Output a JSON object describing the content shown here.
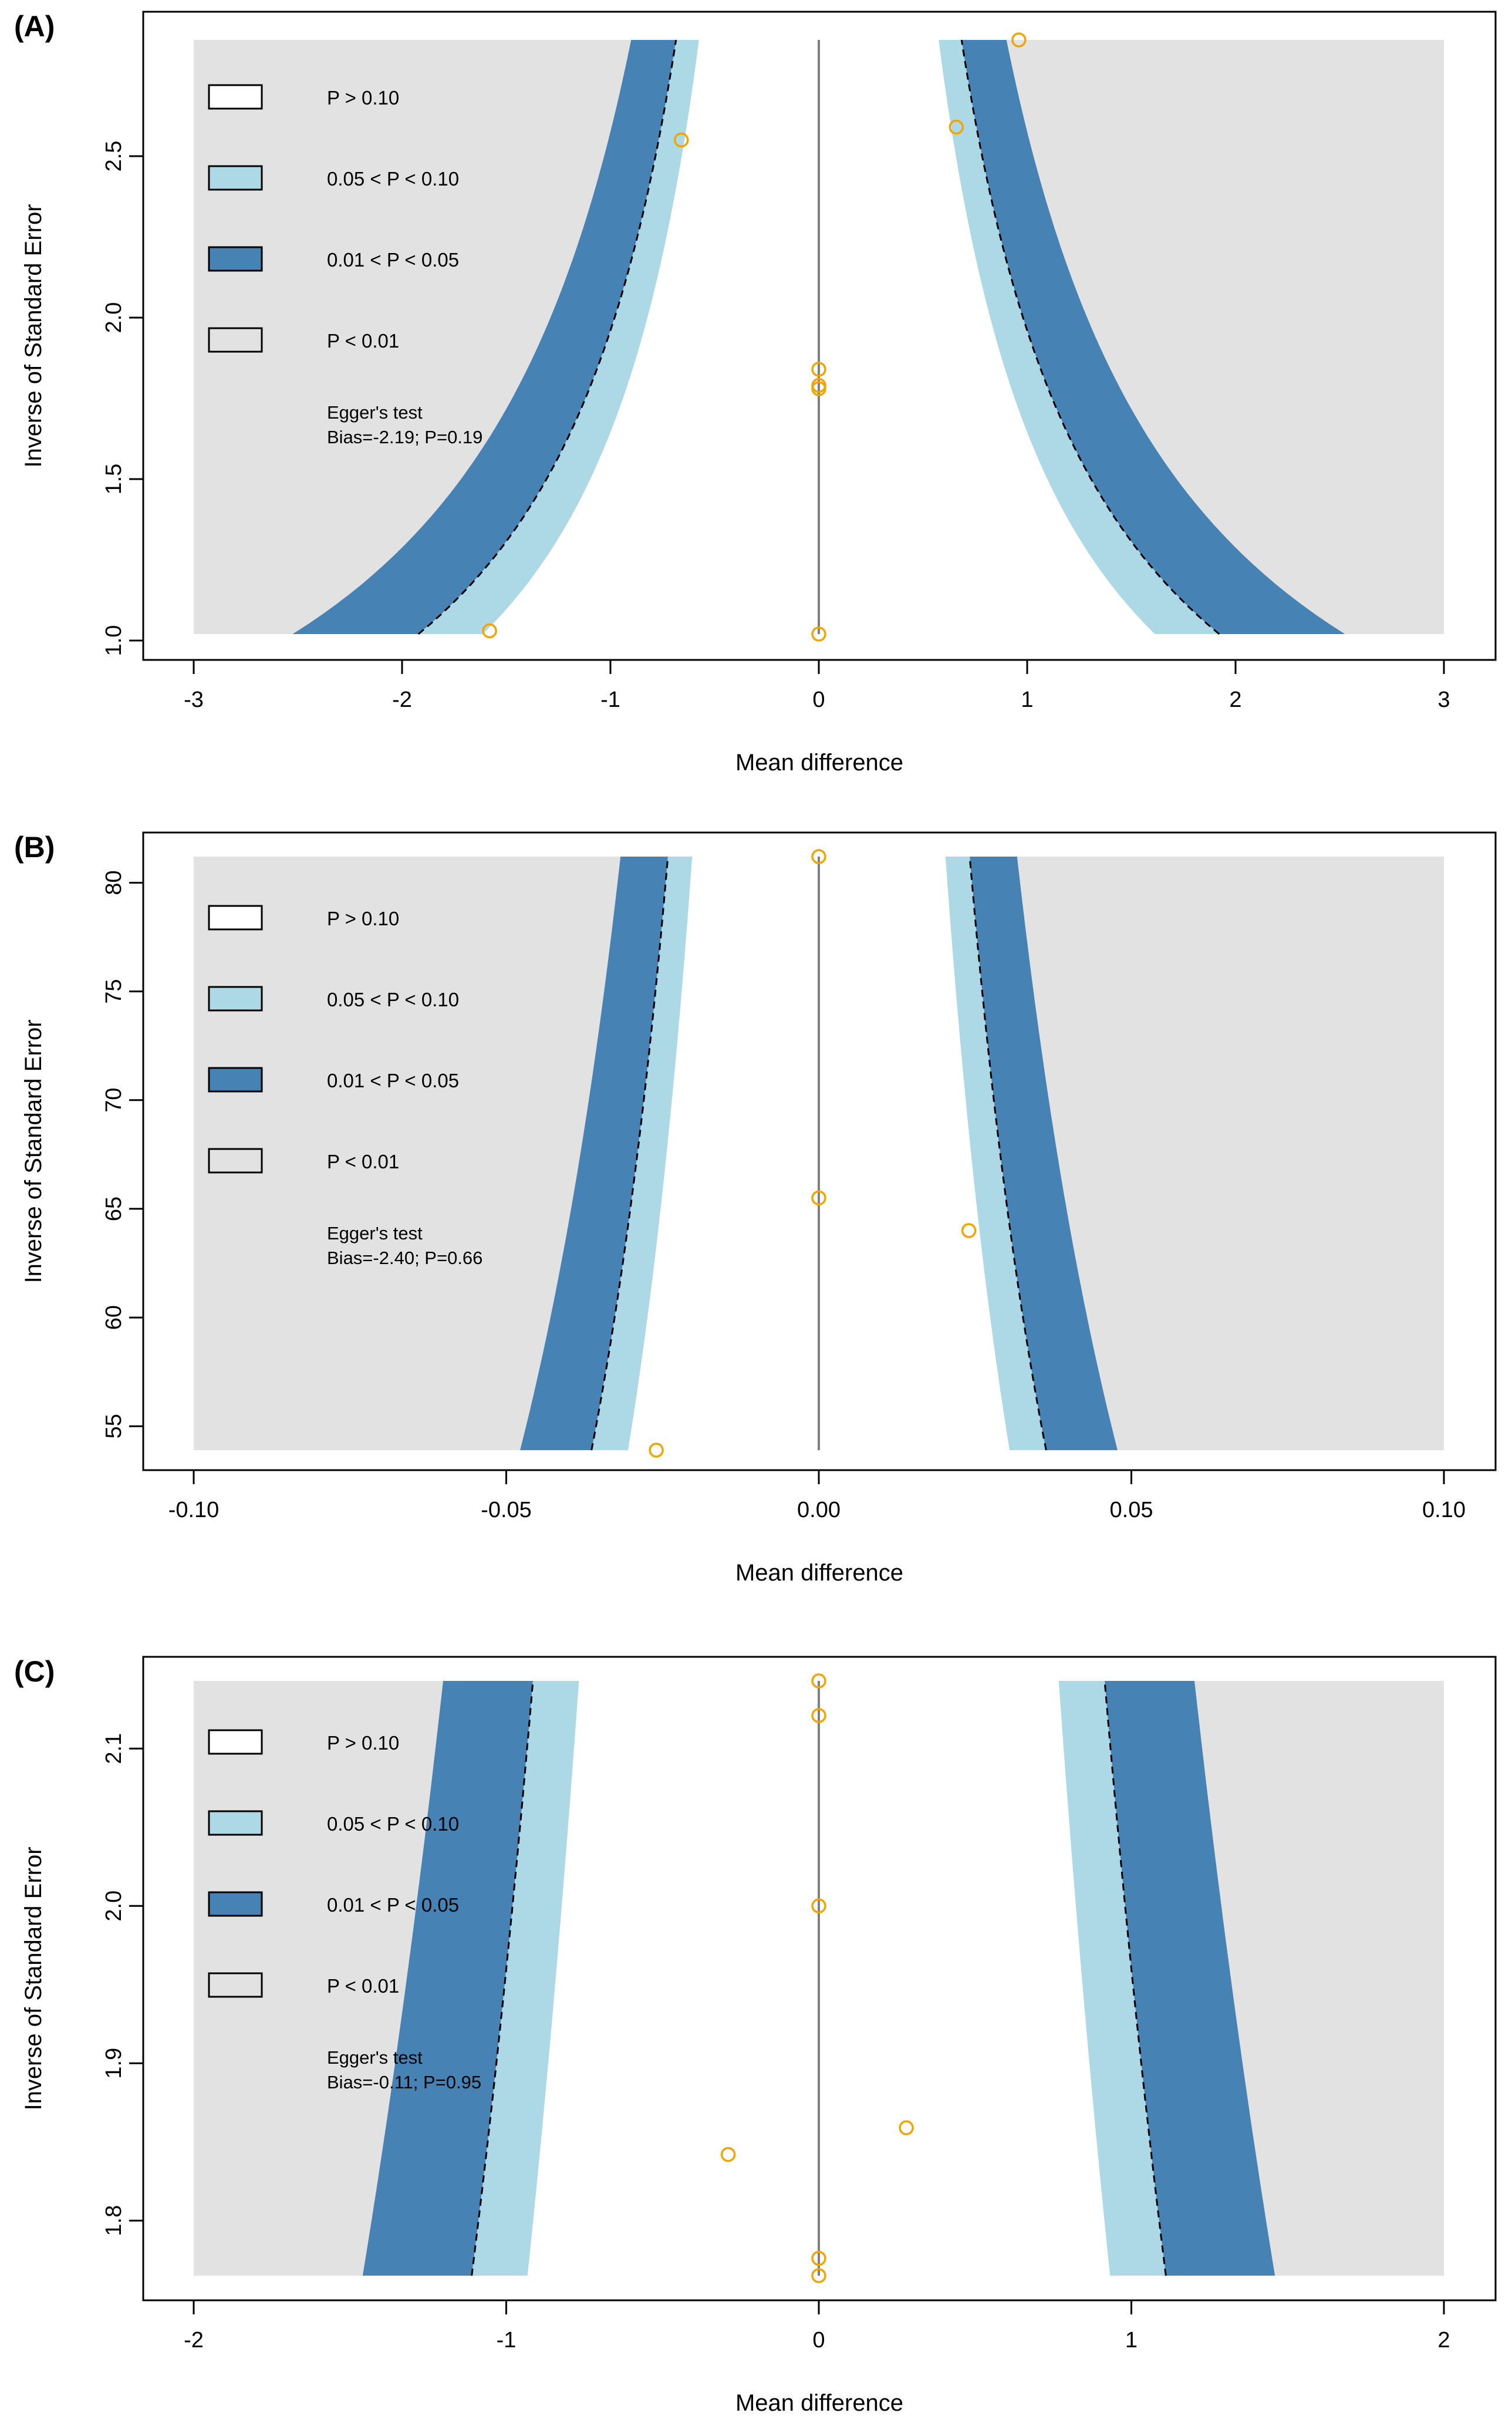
{
  "colors": {
    "significant": "#e2e2e2",
    "p005_010": "#add8e6",
    "p001_005": "#4682b4",
    "nonsignificant": "#ffffff",
    "study_point": "#f0a500",
    "axis": "#000000",
    "center_line": "#808080"
  },
  "chart_data": [
    {
      "type": "scatter",
      "subtype": "contour-enhanced funnel plot",
      "panel_label": "(A)",
      "xlabel": "Mean difference",
      "ylabel": "Inverse of Standard Error",
      "xlim": [
        -3,
        3
      ],
      "ylim": [
        1.02,
        2.86
      ],
      "x_ticks": [
        -3,
        -2,
        -1,
        0,
        1,
        2,
        3
      ],
      "x_tick_labels": [
        "-3",
        "-2",
        "-1",
        "0",
        "1",
        "2",
        "3"
      ],
      "y_ticks": [
        1.0,
        1.5,
        2.0,
        2.5
      ],
      "y_tick_labels": [
        "1.0",
        "1.5",
        "2.0",
        "2.5"
      ],
      "center": 0,
      "legend": [
        "P > 0.10",
        "0.05 < P < 0.10",
        "0.01 < P < 0.05",
        "P < 0.01"
      ],
      "legend_position": "top-left",
      "annotation_lines": [
        "Egger's test",
        " Bias=-2.19; P=0.19"
      ],
      "points": [
        {
          "x": 0.96,
          "y": 2.86
        },
        {
          "x": 0.66,
          "y": 2.59
        },
        {
          "x": -0.66,
          "y": 2.55
        },
        {
          "x": 0.0,
          "y": 1.84
        },
        {
          "x": 0.0,
          "y": 1.79
        },
        {
          "x": 0.0,
          "y": 1.78
        },
        {
          "x": -1.58,
          "y": 1.03
        },
        {
          "x": 0.0,
          "y": 1.02
        }
      ]
    },
    {
      "type": "scatter",
      "subtype": "contour-enhanced funnel plot",
      "panel_label": "(B)",
      "xlabel": "Mean difference",
      "ylabel": "Inverse of Standard Error",
      "xlim": [
        -0.1,
        0.1
      ],
      "ylim": [
        53.9,
        81.2
      ],
      "x_ticks": [
        -0.1,
        -0.05,
        0,
        0.05,
        0.1
      ],
      "x_tick_labels": [
        "-0.10",
        "-0.05",
        "0.00",
        "0.05",
        "0.10"
      ],
      "y_ticks": [
        55,
        60,
        65,
        70,
        75,
        80
      ],
      "y_tick_labels": [
        "55",
        "60",
        "65",
        "70",
        "75",
        "80"
      ],
      "center": 0,
      "legend": [
        "P > 0.10",
        "0.05 < P < 0.10",
        "0.01 < P < 0.05",
        "P < 0.01"
      ],
      "legend_position": "top-left",
      "annotation_lines": [
        "Egger's test",
        " Bias=-2.40; P=0.66"
      ],
      "points": [
        {
          "x": 0.0,
          "y": 81.2
        },
        {
          "x": 0.0,
          "y": 65.5
        },
        {
          "x": 0.024,
          "y": 64.0
        },
        {
          "x": -0.026,
          "y": 53.9
        }
      ]
    },
    {
      "type": "scatter",
      "subtype": "contour-enhanced funnel plot",
      "panel_label": "(C)",
      "xlabel": "Mean difference",
      "ylabel": "Inverse of Standard Error",
      "xlim": [
        -2,
        2
      ],
      "ylim": [
        1.765,
        2.143
      ],
      "x_ticks": [
        -2,
        -1,
        0,
        1,
        2
      ],
      "x_tick_labels": [
        "-2",
        "-1",
        "0",
        "1",
        "2"
      ],
      "y_ticks": [
        1.8,
        1.9,
        2.0,
        2.1
      ],
      "y_tick_labels": [
        "1.8",
        "1.9",
        "2.0",
        "2.1"
      ],
      "center": 0,
      "legend": [
        "P > 0.10",
        "0.05 < P < 0.10",
        "0.01 < P < 0.05",
        "P < 0.01"
      ],
      "legend_position": "top-left",
      "annotation_lines": [
        "Egger's test",
        " Bias=-0.11; P=0.95"
      ],
      "points": [
        {
          "x": 0.0,
          "y": 2.143
        },
        {
          "x": 0.0,
          "y": 2.121
        },
        {
          "x": 0.0,
          "y": 2.0
        },
        {
          "x": 0.28,
          "y": 1.859
        },
        {
          "x": -0.29,
          "y": 1.842
        },
        {
          "x": 0.0,
          "y": 1.776
        },
        {
          "x": 0.0,
          "y": 1.765
        }
      ]
    }
  ]
}
